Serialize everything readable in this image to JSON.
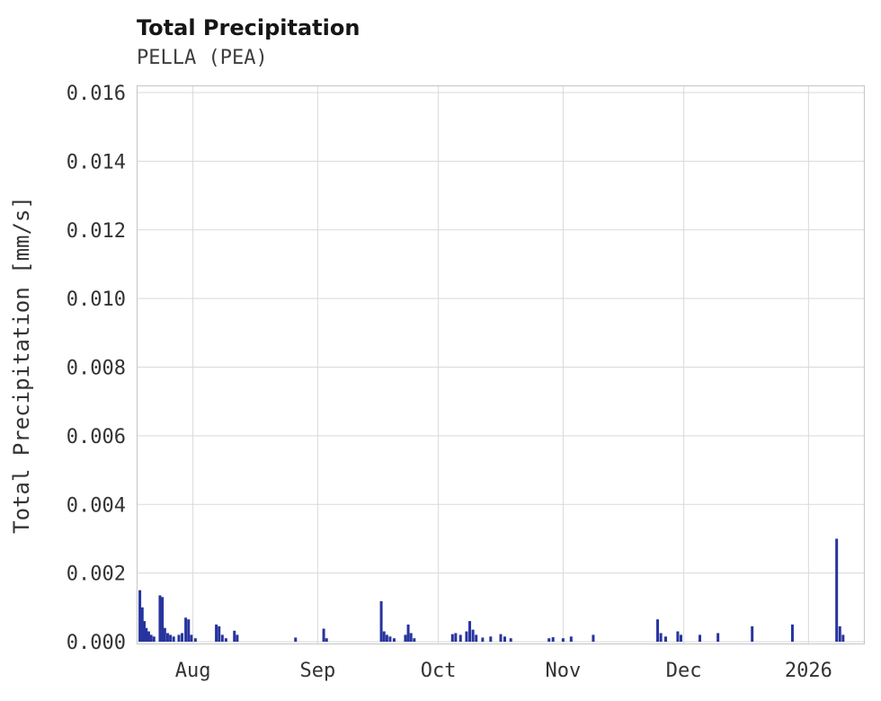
{
  "title": "Total Precipitation",
  "subtitle": "PELLA (PEA)",
  "chart_data": {
    "type": "bar",
    "title": "Total Precipitation",
    "subtitle": "PELLA (PEA)",
    "xlabel": "",
    "ylabel": "Total Precipitation [mm/s]",
    "bar_color": "#27349e",
    "grid_color": "#d9d9d9",
    "background_color": "#ffffff",
    "grid": true,
    "legend": "none",
    "ylim": [
      0,
      0.0163
    ],
    "x_range_days": [
      0,
      181
    ],
    "x_ticks": [
      {
        "day": 14,
        "label": "Aug"
      },
      {
        "day": 45,
        "label": "Sep"
      },
      {
        "day": 75,
        "label": "Oct"
      },
      {
        "day": 106,
        "label": "Nov"
      },
      {
        "day": 136,
        "label": "Dec"
      },
      {
        "day": 167,
        "label": "2026"
      }
    ],
    "y_ticks": [
      {
        "value": 0.0,
        "label": "0.000"
      },
      {
        "value": 0.002,
        "label": "0.002"
      },
      {
        "value": 0.004,
        "label": "0.004"
      },
      {
        "value": 0.006,
        "label": "0.006"
      },
      {
        "value": 0.008,
        "label": "0.008"
      },
      {
        "value": 0.01,
        "label": "0.010"
      },
      {
        "value": 0.012,
        "label": "0.012"
      },
      {
        "value": 0.014,
        "label": "0.014"
      },
      {
        "value": 0.016,
        "label": "0.016"
      }
    ],
    "points": [
      [
        0.8,
        0.0015
      ],
      [
        1.4,
        0.001
      ],
      [
        1.9,
        0.0006
      ],
      [
        2.4,
        0.0004
      ],
      [
        3.0,
        0.0003
      ],
      [
        3.6,
        0.0002
      ],
      [
        4.3,
        0.00015
      ],
      [
        5.8,
        0.00135
      ],
      [
        6.4,
        0.0013
      ],
      [
        7.0,
        0.0004
      ],
      [
        7.7,
        0.00025
      ],
      [
        8.4,
        0.0002
      ],
      [
        9.2,
        0.00015
      ],
      [
        10.5,
        0.0002
      ],
      [
        11.3,
        0.00025
      ],
      [
        12.2,
        0.0007
      ],
      [
        12.9,
        0.00065
      ],
      [
        13.6,
        0.0002
      ],
      [
        14.6,
        0.0001
      ],
      [
        19.8,
        0.0005
      ],
      [
        20.5,
        0.00045
      ],
      [
        21.3,
        0.0002
      ],
      [
        22.2,
        0.0001
      ],
      [
        24.3,
        0.00032
      ],
      [
        25.0,
        0.0002
      ],
      [
        39.5,
        0.00012
      ],
      [
        46.5,
        0.00038
      ],
      [
        47.2,
        0.0001
      ],
      [
        60.8,
        0.00118
      ],
      [
        61.5,
        0.0003
      ],
      [
        62.2,
        0.0002
      ],
      [
        63.0,
        0.00015
      ],
      [
        64.0,
        0.0001
      ],
      [
        66.8,
        0.0002
      ],
      [
        67.5,
        0.0005
      ],
      [
        68.2,
        0.00025
      ],
      [
        69.0,
        0.0001
      ],
      [
        78.5,
        0.00022
      ],
      [
        79.3,
        0.00025
      ],
      [
        80.5,
        0.0002
      ],
      [
        82.0,
        0.0003
      ],
      [
        82.8,
        0.0006
      ],
      [
        83.6,
        0.00035
      ],
      [
        84.4,
        0.0002
      ],
      [
        86.0,
        0.00012
      ],
      [
        88.0,
        0.00015
      ],
      [
        90.5,
        0.00022
      ],
      [
        91.5,
        0.00015
      ],
      [
        93.0,
        0.0001
      ],
      [
        102.5,
        0.0001
      ],
      [
        103.5,
        0.00013
      ],
      [
        106.0,
        0.0001
      ],
      [
        108.0,
        0.00015
      ],
      [
        113.5,
        0.0002
      ],
      [
        129.5,
        0.00065
      ],
      [
        130.3,
        0.00025
      ],
      [
        131.5,
        0.00015
      ],
      [
        134.5,
        0.0003
      ],
      [
        135.3,
        0.0002
      ],
      [
        140.0,
        0.0002
      ],
      [
        144.5,
        0.00025
      ],
      [
        153.0,
        0.00045
      ],
      [
        163.0,
        0.0005
      ],
      [
        174.0,
        0.003
      ],
      [
        174.8,
        0.00045
      ],
      [
        175.6,
        0.0002
      ]
    ]
  }
}
